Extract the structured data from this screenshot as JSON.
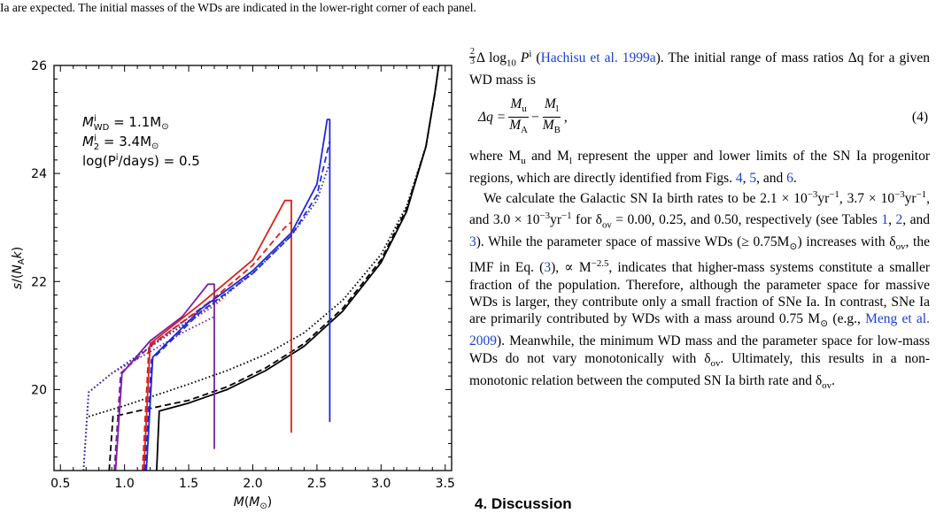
{
  "caption_tail": "Ia are expected. The initial masses of the WDs are indicated in the lower-right corner of each panel.",
  "chart_data": {
    "type": "line",
    "xlabel": "M(M_⊙)",
    "ylabel": "s/(N_A k)",
    "xlim": [
      0.45,
      3.55
    ],
    "ylim": [
      18.5,
      26.0
    ],
    "xticks": [
      0.5,
      1.0,
      1.5,
      2.0,
      2.5,
      3.0,
      3.5
    ],
    "yticks": [
      20,
      22,
      24,
      26
    ],
    "xtick_labels": [
      "0.5",
      "1.0",
      "1.5",
      "2.0",
      "2.5",
      "3.0",
      "3.5"
    ],
    "ytick_labels": [
      "20",
      "22",
      "24",
      "26"
    ],
    "annotation": {
      "l1_a": "M",
      "l1_sup": "i",
      "l1_sub": "WD",
      "l1_b": " = 1.1M",
      "l1_sub2": "⊙",
      "l2_a": "M",
      "l2_sup": "i",
      "l2_sub": "2",
      "l2_b": " = 3.4M",
      "l2_sub2": "⊙",
      "l3": "log(P",
      "l3_sup": "i",
      "l3_b": "/days) = 0.5"
    },
    "colors": {
      "black": "#000000",
      "purple": "#7b1fa2",
      "red": "#e0201b",
      "blue": "#1f2ad6"
    },
    "series": [
      {
        "color": "black",
        "style": "solid",
        "points": [
          [
            1.25,
            18.5
          ],
          [
            1.27,
            19.6
          ],
          [
            1.5,
            19.75
          ],
          [
            1.8,
            20.0
          ],
          [
            2.1,
            20.35
          ],
          [
            2.4,
            20.8
          ],
          [
            2.7,
            21.45
          ],
          [
            3.0,
            22.35
          ],
          [
            3.2,
            23.3
          ],
          [
            3.35,
            24.5
          ],
          [
            3.42,
            25.5
          ],
          [
            3.45,
            26.0
          ]
        ]
      },
      {
        "color": "black",
        "style": "dashed",
        "points": [
          [
            0.88,
            18.5
          ],
          [
            0.91,
            19.5
          ],
          [
            1.1,
            19.6
          ],
          [
            1.5,
            19.8
          ],
          [
            1.8,
            20.05
          ],
          [
            2.1,
            20.4
          ],
          [
            2.4,
            20.85
          ],
          [
            2.7,
            21.5
          ],
          [
            3.0,
            22.4
          ],
          [
            3.2,
            23.35
          ],
          [
            3.35,
            24.5
          ],
          [
            3.42,
            25.5
          ],
          [
            3.45,
            26.0
          ]
        ]
      },
      {
        "color": "black",
        "style": "dotted",
        "points": [
          [
            0.72,
            19.5
          ],
          [
            1.0,
            19.7
          ],
          [
            1.5,
            20.1
          ],
          [
            1.8,
            20.35
          ],
          [
            2.1,
            20.65
          ],
          [
            2.4,
            21.05
          ],
          [
            2.7,
            21.65
          ],
          [
            3.0,
            22.5
          ],
          [
            3.2,
            23.4
          ],
          [
            3.35,
            24.5
          ],
          [
            3.42,
            25.5
          ],
          [
            3.45,
            26.0
          ]
        ]
      },
      {
        "color": "purple",
        "style": "solid",
        "points": [
          [
            0.93,
            18.5
          ],
          [
            0.98,
            20.3
          ],
          [
            1.2,
            20.9
          ],
          [
            1.45,
            21.35
          ],
          [
            1.65,
            21.95
          ],
          [
            1.7,
            21.95
          ],
          [
            1.7,
            18.9
          ]
        ]
      },
      {
        "color": "purple",
        "style": "dashed",
        "points": [
          [
            0.92,
            18.5
          ],
          [
            0.97,
            20.3
          ],
          [
            1.2,
            20.8
          ],
          [
            1.45,
            21.25
          ],
          [
            1.65,
            21.6
          ],
          [
            1.7,
            21.65
          ]
        ]
      },
      {
        "color": "purple",
        "style": "dotted",
        "points": [
          [
            0.68,
            18.5
          ],
          [
            0.72,
            19.95
          ],
          [
            0.9,
            20.3
          ],
          [
            1.2,
            20.7
          ],
          [
            1.45,
            21.05
          ],
          [
            1.7,
            21.35
          ]
        ]
      },
      {
        "color": "red",
        "style": "solid",
        "points": [
          [
            1.15,
            18.5
          ],
          [
            1.2,
            20.85
          ],
          [
            1.6,
            21.6
          ],
          [
            2.0,
            22.4
          ],
          [
            2.25,
            23.5
          ],
          [
            2.3,
            23.5
          ],
          [
            2.3,
            19.2
          ]
        ]
      },
      {
        "color": "red",
        "style": "dashed",
        "points": [
          [
            1.14,
            18.5
          ],
          [
            1.19,
            20.8
          ],
          [
            1.6,
            21.5
          ],
          [
            2.0,
            22.3
          ],
          [
            2.25,
            23.0
          ],
          [
            2.3,
            23.1
          ]
        ]
      },
      {
        "color": "red",
        "style": "dotted",
        "points": [
          [
            0.68,
            18.5
          ],
          [
            0.72,
            19.95
          ],
          [
            0.9,
            20.3
          ],
          [
            1.3,
            20.95
          ],
          [
            1.7,
            21.55
          ],
          [
            2.0,
            22.2
          ],
          [
            2.3,
            22.9
          ]
        ]
      },
      {
        "color": "blue",
        "style": "solid",
        "points": [
          [
            1.17,
            18.5
          ],
          [
            1.22,
            20.6
          ],
          [
            1.6,
            21.5
          ],
          [
            2.0,
            22.2
          ],
          [
            2.3,
            22.9
          ],
          [
            2.5,
            23.8
          ],
          [
            2.58,
            25.0
          ],
          [
            2.6,
            25.0
          ],
          [
            2.6,
            19.4
          ]
        ]
      },
      {
        "color": "blue",
        "style": "dashed",
        "points": [
          [
            1.16,
            18.5
          ],
          [
            1.21,
            20.55
          ],
          [
            1.6,
            21.45
          ],
          [
            2.0,
            22.15
          ],
          [
            2.3,
            22.85
          ],
          [
            2.5,
            23.6
          ],
          [
            2.6,
            24.6
          ]
        ]
      },
      {
        "color": "blue",
        "style": "dotted",
        "points": [
          [
            0.68,
            18.5
          ],
          [
            0.72,
            19.95
          ],
          [
            0.9,
            20.3
          ],
          [
            1.3,
            20.95
          ],
          [
            1.7,
            21.6
          ],
          [
            2.0,
            22.15
          ],
          [
            2.3,
            22.85
          ],
          [
            2.5,
            23.5
          ],
          [
            2.6,
            24.2
          ]
        ]
      }
    ]
  },
  "text": {
    "p1_a": "Δ log",
    "p1_frac_num": "2",
    "p1_frac_den": "3",
    "p1_sub": "10",
    "p1_b": " P",
    "p1_sup": "i",
    "p1_c": " (",
    "p1_cite": "Hachisu et al. 1999a",
    "p1_d": "). The initial range of mass ratios Δq for a given WD mass is",
    "eq_lhs": "Δq = ",
    "eq_f1_num": "M",
    "eq_f1_num_sub": "u",
    "eq_f1_den": "M",
    "eq_f1_den_sub": "A",
    "eq_minus": " − ",
    "eq_f2_num": "M",
    "eq_f2_num_sub": "l",
    "eq_f2_den": "M",
    "eq_f2_den_sub": "B",
    "eq_comma": ",",
    "eq_number": "(4)",
    "p2_a": "where M",
    "p2_sub1": "u",
    "p2_b": " and M",
    "p2_sub2": "l",
    "p2_c": " represent the upper and lower limits of the SN Ia progenitor regions, which are directly identified from Figs. ",
    "fig4": "4",
    "p2_d": ", ",
    "fig5": "5",
    "p2_e": ", and ",
    "fig6": "6",
    "p2_f": ".",
    "p3_a": "We calculate the Galactic SN Ia birth rates to be 2.1 × 10",
    "p3_sup1": "−3",
    "p3_b": "yr",
    "p3_sup2": "−1",
    "p3_c": ", 3.7 × 10",
    "p3_sup3": "−3",
    "p3_d": "yr",
    "p3_sup4": "−1",
    "p3_e": ", and 3.0 × 10",
    "p3_sup5": "−3",
    "p3_f": "yr",
    "p3_sup6": "−1",
    "p3_g": " for δ",
    "p3_sub1": "ov",
    "p3_h": " = 0.00, 0.25, and 0.50, respectively (see Tables ",
    "tab1": "1",
    "p3_i": ", ",
    "tab2": "2",
    "p3_j": ", and ",
    "tab3": "3",
    "p3_k": "). While the parameter space of massive WDs (≥ 0.75M",
    "p3_sub2": "⊙",
    "p3_l": ") increases with δ",
    "p3_sub3": "ov",
    "p3_m": ", the IMF in Eq. (",
    "eq3": "3",
    "p3_n": "), ∝ M",
    "p3_sup7": "−2.5",
    "p3_o": ", indicates that higher-mass systems constitute a smaller fraction of the population. Therefore, although the parameter space for massive WDs is larger, they contribute only a small fraction of SNe Ia. In contrast, SNe Ia are primarily contributed by WDs with a mass around 0.75 M",
    "p3_sub4": "⊙",
    "p3_p": " (e.g., ",
    "p3_cite": "Meng et al. 2009",
    "p3_q": "). Meanwhile, the minimum WD mass and the parameter space for low-mass WDs do not vary monotonically with δ",
    "p3_sub5": "ov",
    "p3_r": ". Ultimately, this results in a non-monotonic relation between the computed SN Ia birth rate and δ",
    "p3_sub6": "ov",
    "p3_s": "."
  },
  "section_heading": "4. Discussion"
}
